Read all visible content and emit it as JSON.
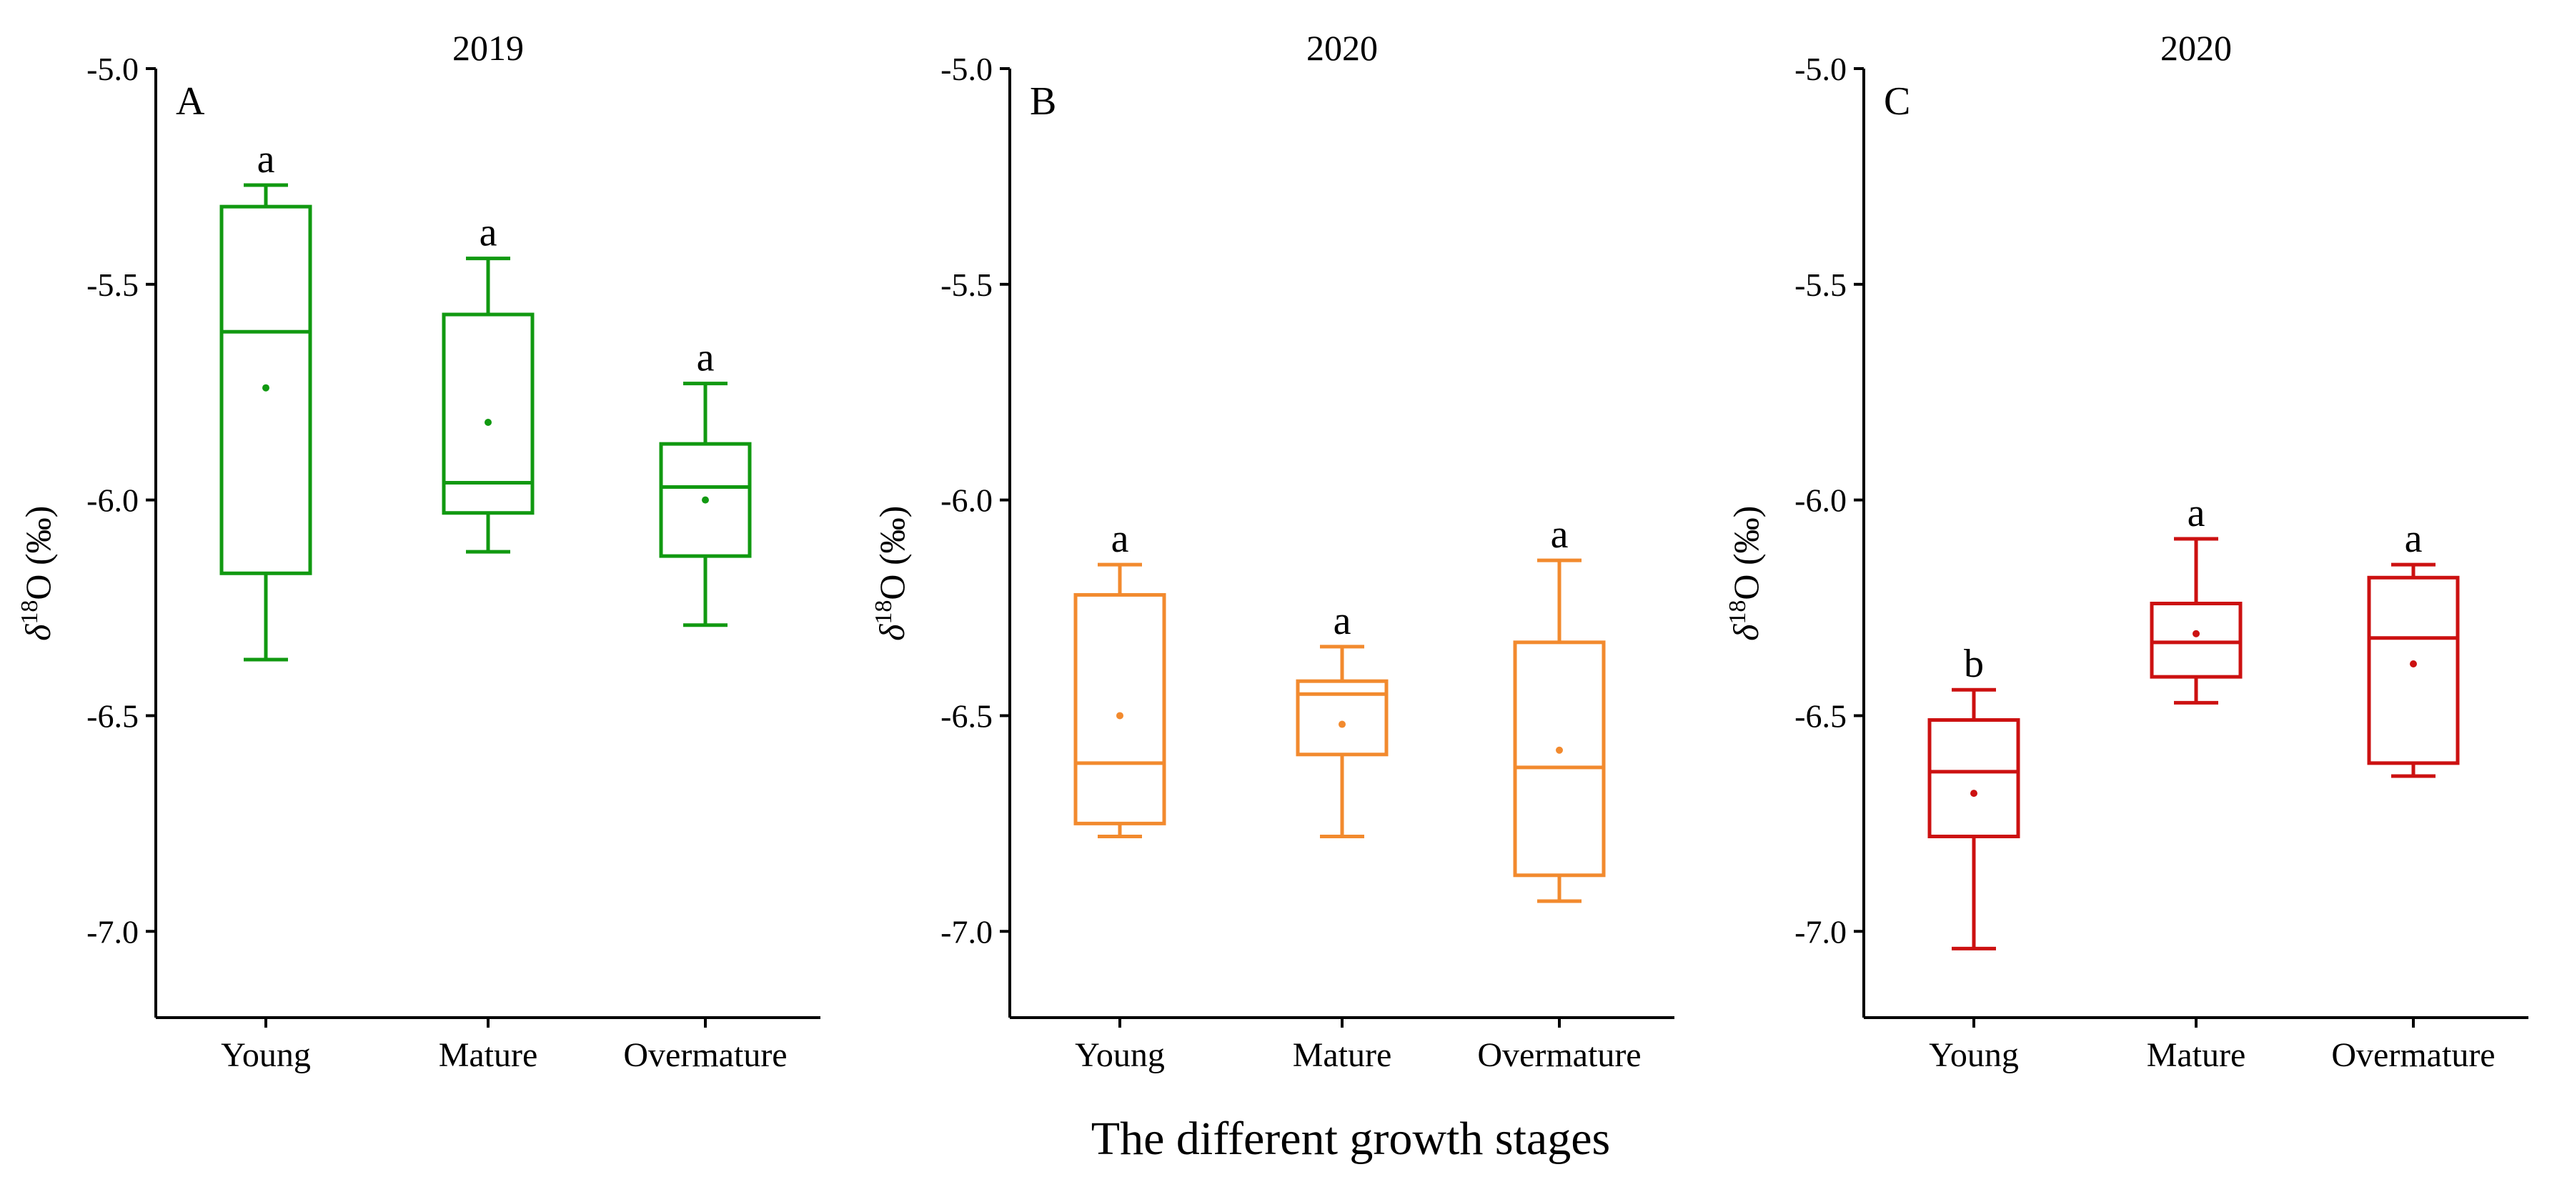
{
  "figure": {
    "x_axis_title": "The different growth stages"
  },
  "chart_data": [
    {
      "type": "box",
      "panel_letter": "A",
      "title": "2019",
      "ylabel_symbol": "δ",
      "ylabel_sup": "18",
      "ylabel_rest": "O (‰)",
      "ylim": [
        -7.2,
        -5.0
      ],
      "ytick_values": [
        -5.0,
        -5.5,
        -6.0,
        -6.5,
        -7.0
      ],
      "ytick_labels": [
        "-5.0",
        "-5.5",
        "-6.0",
        "-6.5",
        "-7.0"
      ],
      "color": "#119911",
      "categories": [
        "Young",
        "Mature",
        "Overmature"
      ],
      "boxes": [
        {
          "whisker_low": -6.37,
          "q1": -6.17,
          "median": -5.61,
          "q3": -5.32,
          "whisker_high": -5.27,
          "mean": -5.74,
          "letter": "a"
        },
        {
          "whisker_low": -6.12,
          "q1": -6.03,
          "median": -5.96,
          "q3": -5.57,
          "whisker_high": -5.44,
          "mean": -5.82,
          "letter": "a"
        },
        {
          "whisker_low": -6.29,
          "q1": -6.13,
          "median": -5.97,
          "q3": -5.87,
          "whisker_high": -5.73,
          "mean": -6.0,
          "letter": "a"
        }
      ]
    },
    {
      "type": "box",
      "panel_letter": "B",
      "title": "2020",
      "ylabel_symbol": "δ",
      "ylabel_sup": "18",
      "ylabel_rest": "O (‰)",
      "ylim": [
        -7.2,
        -5.0
      ],
      "ytick_values": [
        -5.0,
        -5.5,
        -6.0,
        -6.5,
        -7.0
      ],
      "ytick_labels": [
        "-5.0",
        "-5.5",
        "-6.0",
        "-6.5",
        "-7.0"
      ],
      "color": "#f28a2e",
      "categories": [
        "Young",
        "Mature",
        "Overmature"
      ],
      "boxes": [
        {
          "whisker_low": -6.78,
          "q1": -6.75,
          "median": -6.61,
          "q3": -6.22,
          "whisker_high": -6.15,
          "mean": -6.5,
          "letter": "a"
        },
        {
          "whisker_low": -6.78,
          "q1": -6.59,
          "median": -6.45,
          "q3": -6.42,
          "whisker_high": -6.34,
          "mean": -6.52,
          "letter": "a"
        },
        {
          "whisker_low": -6.93,
          "q1": -6.87,
          "median": -6.62,
          "q3": -6.33,
          "whisker_high": -6.14,
          "mean": -6.58,
          "letter": "a"
        }
      ]
    },
    {
      "type": "box",
      "panel_letter": "C",
      "title": "2020",
      "ylabel_symbol": "δ",
      "ylabel_sup": "18",
      "ylabel_rest": "O (‰)",
      "ylim": [
        -7.2,
        -5.0
      ],
      "ytick_values": [
        -5.0,
        -5.5,
        -6.0,
        -6.5,
        -7.0
      ],
      "ytick_labels": [
        "-5.0",
        "-5.5",
        "-6.0",
        "-6.5",
        "-7.0"
      ],
      "color": "#cc1111",
      "categories": [
        "Young",
        "Mature",
        "Overmature"
      ],
      "boxes": [
        {
          "whisker_low": -7.04,
          "q1": -6.78,
          "median": -6.63,
          "q3": -6.51,
          "whisker_high": -6.44,
          "mean": -6.68,
          "letter": "b"
        },
        {
          "whisker_low": -6.47,
          "q1": -6.41,
          "median": -6.33,
          "q3": -6.24,
          "whisker_high": -6.09,
          "mean": -6.31,
          "letter": "a"
        },
        {
          "whisker_low": -6.64,
          "q1": -6.61,
          "median": -6.32,
          "q3": -6.18,
          "whisker_high": -6.15,
          "mean": -6.38,
          "letter": "a"
        }
      ]
    }
  ]
}
